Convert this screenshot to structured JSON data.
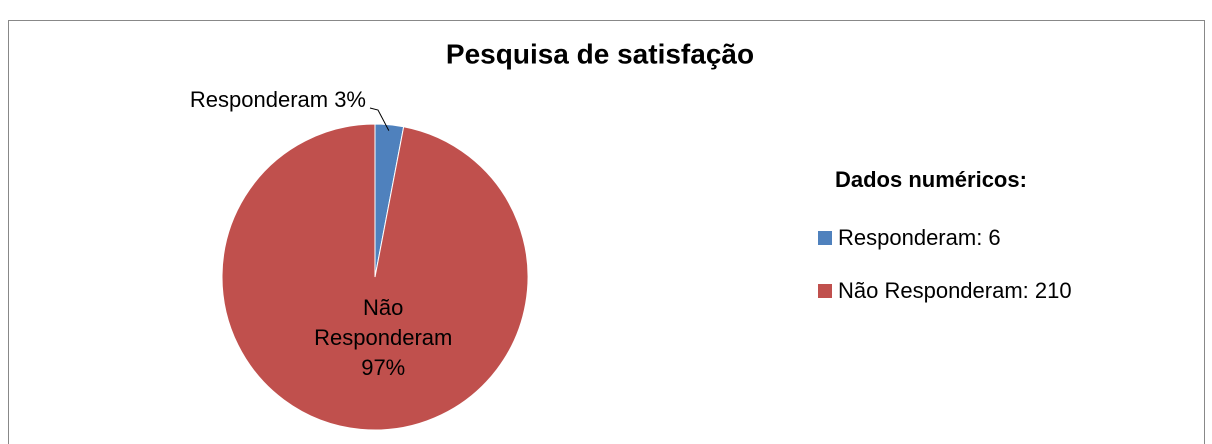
{
  "chart_data": {
    "type": "pie",
    "title": "Pesquisa de satisfação",
    "categories": [
      "Responderam",
      "Não Responderam"
    ],
    "values": [
      3,
      97
    ],
    "value_labels": [
      "Responderam 3%",
      "Não Responderam 97%"
    ],
    "colors": [
      "#4f81bd",
      "#c0504d"
    ],
    "legend": {
      "title": "Dados numéricos:",
      "entries": [
        "Responderam: 6",
        "Não Responderam: 210"
      ],
      "position": "right"
    }
  }
}
